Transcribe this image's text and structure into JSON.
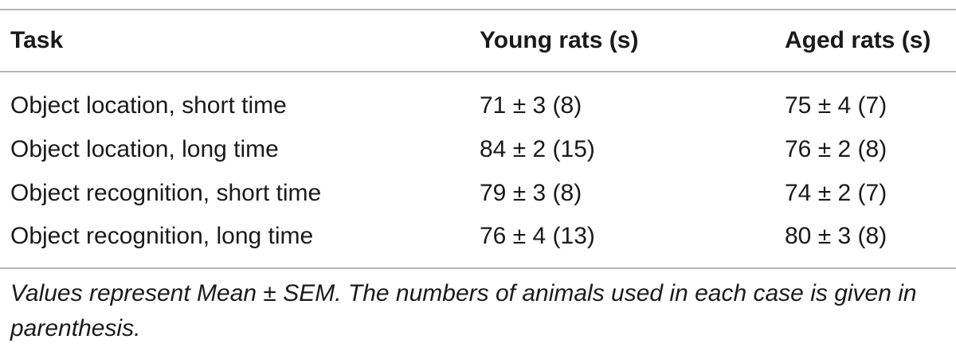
{
  "table": {
    "headers": [
      "Task",
      "Young rats (s)",
      "Aged rats (s)"
    ],
    "rows": [
      [
        "Object location, short time",
        "71 ± 3 (8)",
        "75 ± 4 (7)"
      ],
      [
        "Object location, long time",
        "84 ± 2 (15)",
        "76 ± 2 (8)"
      ],
      [
        "Object recognition, short time",
        "79 ± 3 (8)",
        "74 ± 2 (7)"
      ],
      [
        "Object recognition, long time",
        "76 ± 4 (13)",
        "80 ± 3 (8)"
      ]
    ]
  },
  "footnote": "Values represent Mean ± SEM. The numbers of animals used in each case is given in parenthesis."
}
